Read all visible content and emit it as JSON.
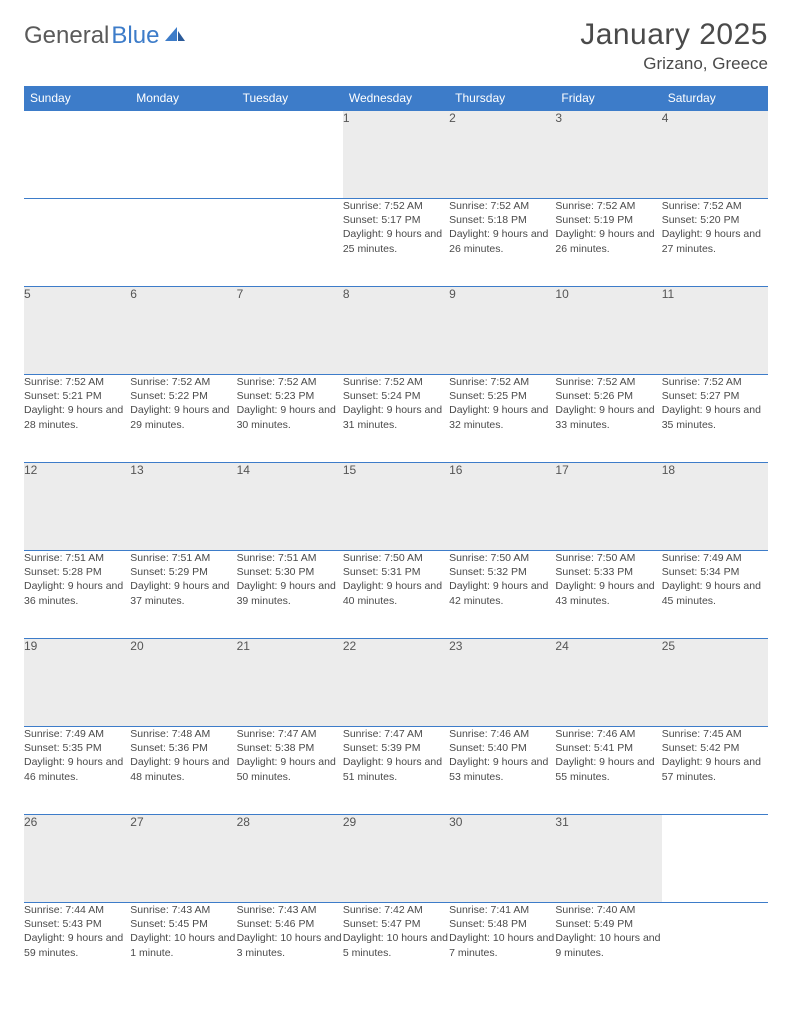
{
  "brand": {
    "part1": "General",
    "part2": "Blue"
  },
  "title": "January 2025",
  "location": "Grizano, Greece",
  "colors": {
    "header_bg": "#3d7cc9",
    "header_text": "#ffffff",
    "daynum_bg": "#ececec",
    "border": "#3d7cc9",
    "text": "#4a4a4a",
    "background": "#ffffff"
  },
  "fonts": {
    "title_size": 30,
    "location_size": 17,
    "header_cell_size": 12,
    "daynum_size": 12,
    "body_size": 10.5
  },
  "day_headers": [
    "Sunday",
    "Monday",
    "Tuesday",
    "Wednesday",
    "Thursday",
    "Friday",
    "Saturday"
  ],
  "weeks": [
    [
      null,
      null,
      null,
      {
        "n": "1",
        "sr": "7:52 AM",
        "ss": "5:17 PM",
        "dl": "9 hours and 25 minutes."
      },
      {
        "n": "2",
        "sr": "7:52 AM",
        "ss": "5:18 PM",
        "dl": "9 hours and 26 minutes."
      },
      {
        "n": "3",
        "sr": "7:52 AM",
        "ss": "5:19 PM",
        "dl": "9 hours and 26 minutes."
      },
      {
        "n": "4",
        "sr": "7:52 AM",
        "ss": "5:20 PM",
        "dl": "9 hours and 27 minutes."
      }
    ],
    [
      {
        "n": "5",
        "sr": "7:52 AM",
        "ss": "5:21 PM",
        "dl": "9 hours and 28 minutes."
      },
      {
        "n": "6",
        "sr": "7:52 AM",
        "ss": "5:22 PM",
        "dl": "9 hours and 29 minutes."
      },
      {
        "n": "7",
        "sr": "7:52 AM",
        "ss": "5:23 PM",
        "dl": "9 hours and 30 minutes."
      },
      {
        "n": "8",
        "sr": "7:52 AM",
        "ss": "5:24 PM",
        "dl": "9 hours and 31 minutes."
      },
      {
        "n": "9",
        "sr": "7:52 AM",
        "ss": "5:25 PM",
        "dl": "9 hours and 32 minutes."
      },
      {
        "n": "10",
        "sr": "7:52 AM",
        "ss": "5:26 PM",
        "dl": "9 hours and 33 minutes."
      },
      {
        "n": "11",
        "sr": "7:52 AM",
        "ss": "5:27 PM",
        "dl": "9 hours and 35 minutes."
      }
    ],
    [
      {
        "n": "12",
        "sr": "7:51 AM",
        "ss": "5:28 PM",
        "dl": "9 hours and 36 minutes."
      },
      {
        "n": "13",
        "sr": "7:51 AM",
        "ss": "5:29 PM",
        "dl": "9 hours and 37 minutes."
      },
      {
        "n": "14",
        "sr": "7:51 AM",
        "ss": "5:30 PM",
        "dl": "9 hours and 39 minutes."
      },
      {
        "n": "15",
        "sr": "7:50 AM",
        "ss": "5:31 PM",
        "dl": "9 hours and 40 minutes."
      },
      {
        "n": "16",
        "sr": "7:50 AM",
        "ss": "5:32 PM",
        "dl": "9 hours and 42 minutes."
      },
      {
        "n": "17",
        "sr": "7:50 AM",
        "ss": "5:33 PM",
        "dl": "9 hours and 43 minutes."
      },
      {
        "n": "18",
        "sr": "7:49 AM",
        "ss": "5:34 PM",
        "dl": "9 hours and 45 minutes."
      }
    ],
    [
      {
        "n": "19",
        "sr": "7:49 AM",
        "ss": "5:35 PM",
        "dl": "9 hours and 46 minutes."
      },
      {
        "n": "20",
        "sr": "7:48 AM",
        "ss": "5:36 PM",
        "dl": "9 hours and 48 minutes."
      },
      {
        "n": "21",
        "sr": "7:47 AM",
        "ss": "5:38 PM",
        "dl": "9 hours and 50 minutes."
      },
      {
        "n": "22",
        "sr": "7:47 AM",
        "ss": "5:39 PM",
        "dl": "9 hours and 51 minutes."
      },
      {
        "n": "23",
        "sr": "7:46 AM",
        "ss": "5:40 PM",
        "dl": "9 hours and 53 minutes."
      },
      {
        "n": "24",
        "sr": "7:46 AM",
        "ss": "5:41 PM",
        "dl": "9 hours and 55 minutes."
      },
      {
        "n": "25",
        "sr": "7:45 AM",
        "ss": "5:42 PM",
        "dl": "9 hours and 57 minutes."
      }
    ],
    [
      {
        "n": "26",
        "sr": "7:44 AM",
        "ss": "5:43 PM",
        "dl": "9 hours and 59 minutes."
      },
      {
        "n": "27",
        "sr": "7:43 AM",
        "ss": "5:45 PM",
        "dl": "10 hours and 1 minute."
      },
      {
        "n": "28",
        "sr": "7:43 AM",
        "ss": "5:46 PM",
        "dl": "10 hours and 3 minutes."
      },
      {
        "n": "29",
        "sr": "7:42 AM",
        "ss": "5:47 PM",
        "dl": "10 hours and 5 minutes."
      },
      {
        "n": "30",
        "sr": "7:41 AM",
        "ss": "5:48 PM",
        "dl": "10 hours and 7 minutes."
      },
      {
        "n": "31",
        "sr": "7:40 AM",
        "ss": "5:49 PM",
        "dl": "10 hours and 9 minutes."
      },
      null
    ]
  ],
  "labels": {
    "sunrise": "Sunrise:",
    "sunset": "Sunset:",
    "daylight": "Daylight:"
  }
}
